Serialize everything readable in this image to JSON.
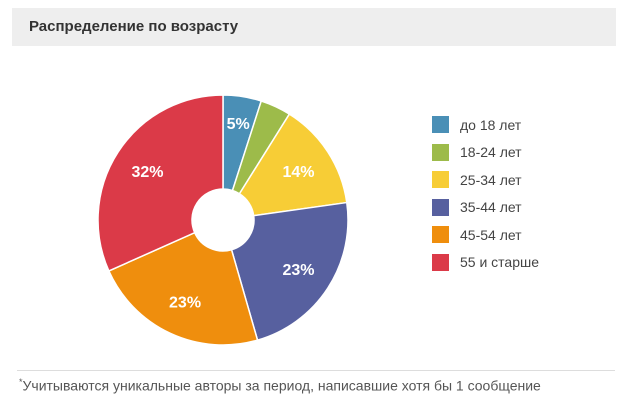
{
  "header": {
    "title": "Распределение по возрасту"
  },
  "chart_data": {
    "type": "pie",
    "categories": [
      "до 18 лет",
      "18-24 лет",
      "25-34 лет",
      "35-44 лет",
      "45-54 лет",
      "55 и старше"
    ],
    "values": [
      5,
      4,
      14,
      23,
      23,
      32
    ],
    "data_labels": [
      "5%",
      "",
      "14%",
      "23%",
      "23%",
      "32%"
    ],
    "colors": [
      "#4a8fb6",
      "#9dbb4a",
      "#f7cd36",
      "#57609f",
      "#ef8e0d",
      "#db3a48"
    ],
    "donut": true,
    "legend_position": "right"
  },
  "footnote": {
    "marker": "*",
    "text": "Учитываются уникальные авторы за период, написавшие хотя бы 1 сообщение"
  }
}
